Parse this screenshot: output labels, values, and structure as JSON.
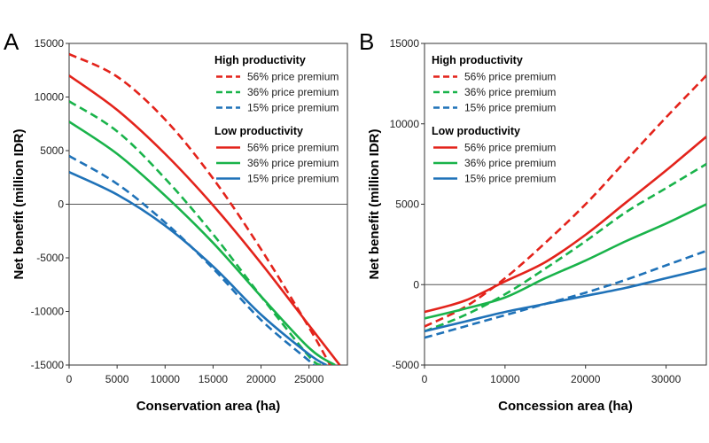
{
  "chart_data": [
    {
      "type": "line",
      "panel_letter": "A",
      "xlabel": "Conservation area (ha)",
      "ylabel": "Net benefit (million IDR)",
      "xlim": [
        0,
        29000
      ],
      "ylim": [
        -15000,
        15000
      ],
      "x_ticks": [
        "0",
        "5000",
        "10000",
        "15000",
        "20000",
        "25000"
      ],
      "y_ticks": [
        "15000",
        "10000",
        "5000",
        "0",
        "-5000",
        "-10000",
        "-15000"
      ],
      "zero_line": true,
      "legend_position": "top-right",
      "legend_groups": [
        {
          "heading": "High productivity",
          "entries": [
            {
              "label": "56% price premium",
              "color": "#e3231b",
              "style": "dashed"
            },
            {
              "label": "36% price premium",
              "color": "#19b34a",
              "style": "dashed"
            },
            {
              "label": "15% price premium",
              "color": "#1f72b8",
              "style": "dashed"
            }
          ]
        },
        {
          "heading": "Low productivity",
          "entries": [
            {
              "label": "56% price premium",
              "color": "#e3231b",
              "style": "solid"
            },
            {
              "label": "36% price premium",
              "color": "#19b34a",
              "style": "solid"
            },
            {
              "label": "15% price premium",
              "color": "#1f72b8",
              "style": "solid"
            }
          ]
        }
      ],
      "series": [
        {
          "color": "#e3231b",
          "style": "dashed",
          "x": [
            0,
            5000,
            10000,
            15000,
            20000,
            25000,
            27200
          ],
          "y": [
            14000,
            11900,
            7900,
            2400,
            -4200,
            -11500,
            -15000
          ]
        },
        {
          "color": "#19b34a",
          "style": "dashed",
          "x": [
            0,
            5000,
            10000,
            15000,
            20000,
            25000,
            26300
          ],
          "y": [
            9600,
            6800,
            2400,
            -2800,
            -8600,
            -14200,
            -15000
          ]
        },
        {
          "color": "#1f72b8",
          "style": "dashed",
          "x": [
            0,
            5000,
            10000,
            15000,
            20000,
            25000,
            25500
          ],
          "y": [
            4500,
            1900,
            -1700,
            -6000,
            -10800,
            -14600,
            -15000
          ]
        },
        {
          "color": "#e3231b",
          "style": "solid",
          "x": [
            0,
            5000,
            10000,
            15000,
            20000,
            25000,
            28200
          ],
          "y": [
            12000,
            8800,
            4700,
            -100,
            -5500,
            -11300,
            -15000
          ]
        },
        {
          "color": "#19b34a",
          "style": "solid",
          "x": [
            0,
            5000,
            10000,
            15000,
            20000,
            25000,
            27700
          ],
          "y": [
            7700,
            4700,
            800,
            -3600,
            -8600,
            -13400,
            -15000
          ]
        },
        {
          "color": "#1f72b8",
          "style": "solid",
          "x": [
            0,
            5000,
            10000,
            15000,
            20000,
            25000,
            26800
          ],
          "y": [
            3000,
            900,
            -2000,
            -5800,
            -10300,
            -14000,
            -15000
          ]
        }
      ]
    },
    {
      "type": "line",
      "panel_letter": "B",
      "xlabel": "Concession area (ha)",
      "ylabel": "Net benefit (million IDR)",
      "xlim": [
        0,
        35000
      ],
      "ylim": [
        -5000,
        15000
      ],
      "x_ticks": [
        "0",
        "10000",
        "20000",
        "30000"
      ],
      "y_ticks": [
        "15000",
        "10000",
        "5000",
        "0",
        "-5000"
      ],
      "zero_line": true,
      "legend_position": "top-left",
      "legend_groups": [
        {
          "heading": "High productivity",
          "entries": [
            {
              "label": "56% price premium",
              "color": "#e3231b",
              "style": "dashed"
            },
            {
              "label": "36% price premium",
              "color": "#19b34a",
              "style": "dashed"
            },
            {
              "label": "15% price premium",
              "color": "#1f72b8",
              "style": "dashed"
            }
          ]
        },
        {
          "heading": "Low productivity",
          "entries": [
            {
              "label": "56% price premium",
              "color": "#e3231b",
              "style": "solid"
            },
            {
              "label": "36% price premium",
              "color": "#19b34a",
              "style": "solid"
            },
            {
              "label": "15% price premium",
              "color": "#1f72b8",
              "style": "solid"
            }
          ]
        }
      ],
      "series": [
        {
          "color": "#e3231b",
          "style": "dashed",
          "x": [
            0,
            5000,
            10000,
            15000,
            20000,
            25000,
            30000,
            35000
          ],
          "y": [
            -2600,
            -1400,
            400,
            2600,
            5000,
            7700,
            10400,
            13000
          ]
        },
        {
          "color": "#19b34a",
          "style": "dashed",
          "x": [
            0,
            5000,
            10000,
            15000,
            20000,
            25000,
            30000,
            35000
          ],
          "y": [
            -2900,
            -1900,
            -600,
            1000,
            2700,
            4500,
            6000,
            7500
          ]
        },
        {
          "color": "#1f72b8",
          "style": "dashed",
          "x": [
            0,
            5000,
            10000,
            15000,
            20000,
            25000,
            30000,
            35000
          ],
          "y": [
            -3300,
            -2600,
            -1900,
            -1200,
            -500,
            300,
            1200,
            2100
          ]
        },
        {
          "color": "#e3231b",
          "style": "solid",
          "x": [
            0,
            5000,
            10000,
            15000,
            20000,
            25000,
            30000,
            35000
          ],
          "y": [
            -1700,
            -1000,
            200,
            1400,
            3100,
            5100,
            7100,
            9200
          ]
        },
        {
          "color": "#19b34a",
          "style": "solid",
          "x": [
            0,
            5000,
            10000,
            15000,
            20000,
            25000,
            30000,
            35000
          ],
          "y": [
            -2100,
            -1500,
            -800,
            400,
            1500,
            2700,
            3800,
            5000
          ]
        },
        {
          "color": "#1f72b8",
          "style": "solid",
          "x": [
            0,
            5000,
            10000,
            15000,
            20000,
            25000,
            30000,
            35000
          ],
          "y": [
            -2900,
            -2300,
            -1700,
            -1200,
            -700,
            -200,
            400,
            1000
          ]
        }
      ]
    }
  ]
}
